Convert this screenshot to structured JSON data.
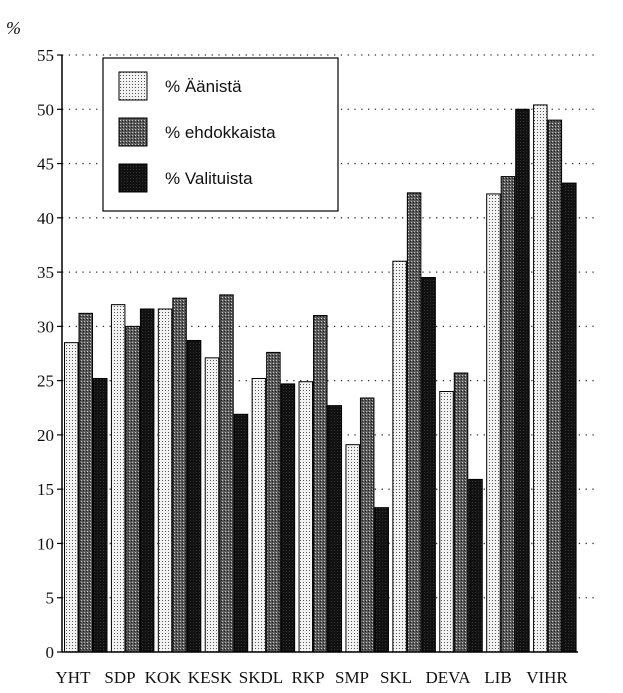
{
  "chart_data": {
    "type": "bar",
    "ylabel": "%",
    "ylim": [
      0,
      55
    ],
    "yticks": [
      0,
      5,
      10,
      15,
      20,
      25,
      30,
      35,
      40,
      45,
      50,
      55
    ],
    "grid": "horizontal dotted",
    "legend_position": "top-left",
    "categories": [
      "YHT",
      "SDP",
      "KOK",
      "KESK",
      "SKDL",
      "RKP",
      "SMP",
      "SKL",
      "DEVA",
      "LIB",
      "VIHR"
    ],
    "series": [
      {
        "name": "% Äänistä",
        "color": "#e8e8e8",
        "pattern": "light-dots",
        "values": [
          28.5,
          32.0,
          31.6,
          27.1,
          25.2,
          24.9,
          19.1,
          36.0,
          24.0,
          42.2,
          50.4
        ]
      },
      {
        "name": "% ehdokkaista",
        "color": "#7a7a7a",
        "pattern": "dark-dots",
        "values": [
          31.2,
          30.0,
          32.6,
          32.9,
          27.6,
          31.0,
          23.4,
          42.3,
          25.7,
          43.8,
          49.0
        ]
      },
      {
        "name": "% Valituista",
        "color": "#141414",
        "pattern": "solid",
        "values": [
          25.2,
          31.6,
          28.7,
          21.9,
          24.7,
          22.7,
          13.3,
          34.5,
          15.9,
          50.0,
          43.2
        ]
      }
    ]
  }
}
